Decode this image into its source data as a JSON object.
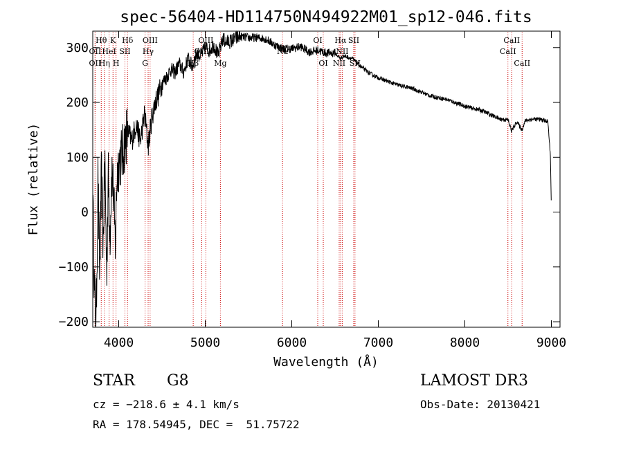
{
  "chart_data": {
    "type": "line",
    "title": "spec-56404-HD114750N494922M01_sp12-046.fits",
    "xlabel": "Wavelength (Å)",
    "ylabel": "Flux (relative)",
    "xlim": [
      3700,
      9100
    ],
    "ylim": [
      -210,
      330
    ],
    "xticks": [
      4000,
      5000,
      6000,
      7000,
      8000,
      9000
    ],
    "yticks": [
      -200,
      -100,
      0,
      100,
      200,
      300
    ],
    "series": [
      {
        "name": "spectrum",
        "color": "#000000",
        "x": [
          3700,
          3720,
          3740,
          3760,
          3780,
          3800,
          3820,
          3840,
          3860,
          3880,
          3900,
          3920,
          3940,
          3960,
          3980,
          4000,
          4050,
          4100,
          4150,
          4200,
          4250,
          4300,
          4340,
          4380,
          4420,
          4460,
          4500,
          4550,
          4600,
          4650,
          4700,
          4750,
          4800,
          4850,
          4900,
          4950,
          5000,
          5050,
          5100,
          5150,
          5200,
          5250,
          5300,
          5400,
          5500,
          5600,
          5700,
          5800,
          5900,
          6000,
          6100,
          6200,
          6300,
          6400,
          6500,
          6560,
          6600,
          6700,
          6800,
          6900,
          7000,
          7200,
          7400,
          7600,
          7800,
          8000,
          8200,
          8400,
          8500,
          8540,
          8600,
          8660,
          8700,
          8800,
          8900,
          8960,
          8990,
          9000
        ],
        "y": [
          20,
          -150,
          -200,
          60,
          -120,
          70,
          -60,
          100,
          -110,
          60,
          -40,
          80,
          30,
          -60,
          70,
          90,
          110,
          150,
          130,
          160,
          130,
          180,
          120,
          170,
          200,
          215,
          235,
          245,
          260,
          255,
          270,
          255,
          280,
          265,
          290,
          285,
          300,
          295,
          305,
          285,
          315,
          310,
          312,
          320,
          318,
          318,
          316,
          305,
          298,
          298,
          302,
          292,
          295,
          290,
          290,
          280,
          285,
          280,
          265,
          253,
          245,
          233,
          225,
          212,
          205,
          193,
          185,
          170,
          168,
          148,
          165,
          150,
          167,
          170,
          168,
          165,
          100,
          0
        ]
      }
    ],
    "lines": [
      {
        "label": "Hθ",
        "x": 3798,
        "row": 1
      },
      {
        "label": "OII",
        "x": 3727,
        "row": 2
      },
      {
        "label": "OII",
        "x": 3727,
        "row": 3
      },
      {
        "label": "Hη",
        "x": 3835,
        "row": 3
      },
      {
        "label": "K",
        "x": 3934,
        "row": 1
      },
      {
        "label": "H",
        "x": 3969,
        "row": 3
      },
      {
        "label": "HeI",
        "x": 3889,
        "row": 2
      },
      {
        "label": "SII",
        "x": 4072,
        "row": 2
      },
      {
        "label": "Hδ",
        "x": 4102,
        "row": 1
      },
      {
        "label": "OIII",
        "x": 4363,
        "row": 1
      },
      {
        "label": "Hγ",
        "x": 4340,
        "row": 2
      },
      {
        "label": "G",
        "x": 4305,
        "row": 3
      },
      {
        "label": "Hβ",
        "x": 4861,
        "row": 3
      },
      {
        "label": "OIII",
        "x": 4959,
        "row": 2
      },
      {
        "label": "OIII",
        "x": 5007,
        "row": 1
      },
      {
        "label": "Mg",
        "x": 5175,
        "row": 3
      },
      {
        "label": "Na",
        "x": 5893,
        "row": 2
      },
      {
        "label": "OI",
        "x": 6300,
        "row": 1
      },
      {
        "label": "OI",
        "x": 6364,
        "row": 3
      },
      {
        "label": "Hα",
        "x": 6563,
        "row": 1
      },
      {
        "label": "NII",
        "x": 6548,
        "row": 3
      },
      {
        "label": "NII",
        "x": 6583,
        "row": 2
      },
      {
        "label": "SII",
        "x": 6716,
        "row": 1
      },
      {
        "label": "SII",
        "x": 6731,
        "row": 3
      },
      {
        "label": "CaII",
        "x": 8498,
        "row": 2
      },
      {
        "label": "CaII",
        "x": 8542,
        "row": 1
      },
      {
        "label": "CaII",
        "x": 8662,
        "row": 3
      }
    ]
  },
  "info": {
    "class": "STAR",
    "subclass": "G8",
    "survey": "LAMOST DR3",
    "cz": "cz = −218.6 ± 4.1 km/s",
    "obs_date": "Obs-Date: 20130421",
    "radec": "RA = 178.54945, DEC =  51.75722"
  },
  "colors": {
    "line": "#000000",
    "marker": "#cc0000"
  }
}
